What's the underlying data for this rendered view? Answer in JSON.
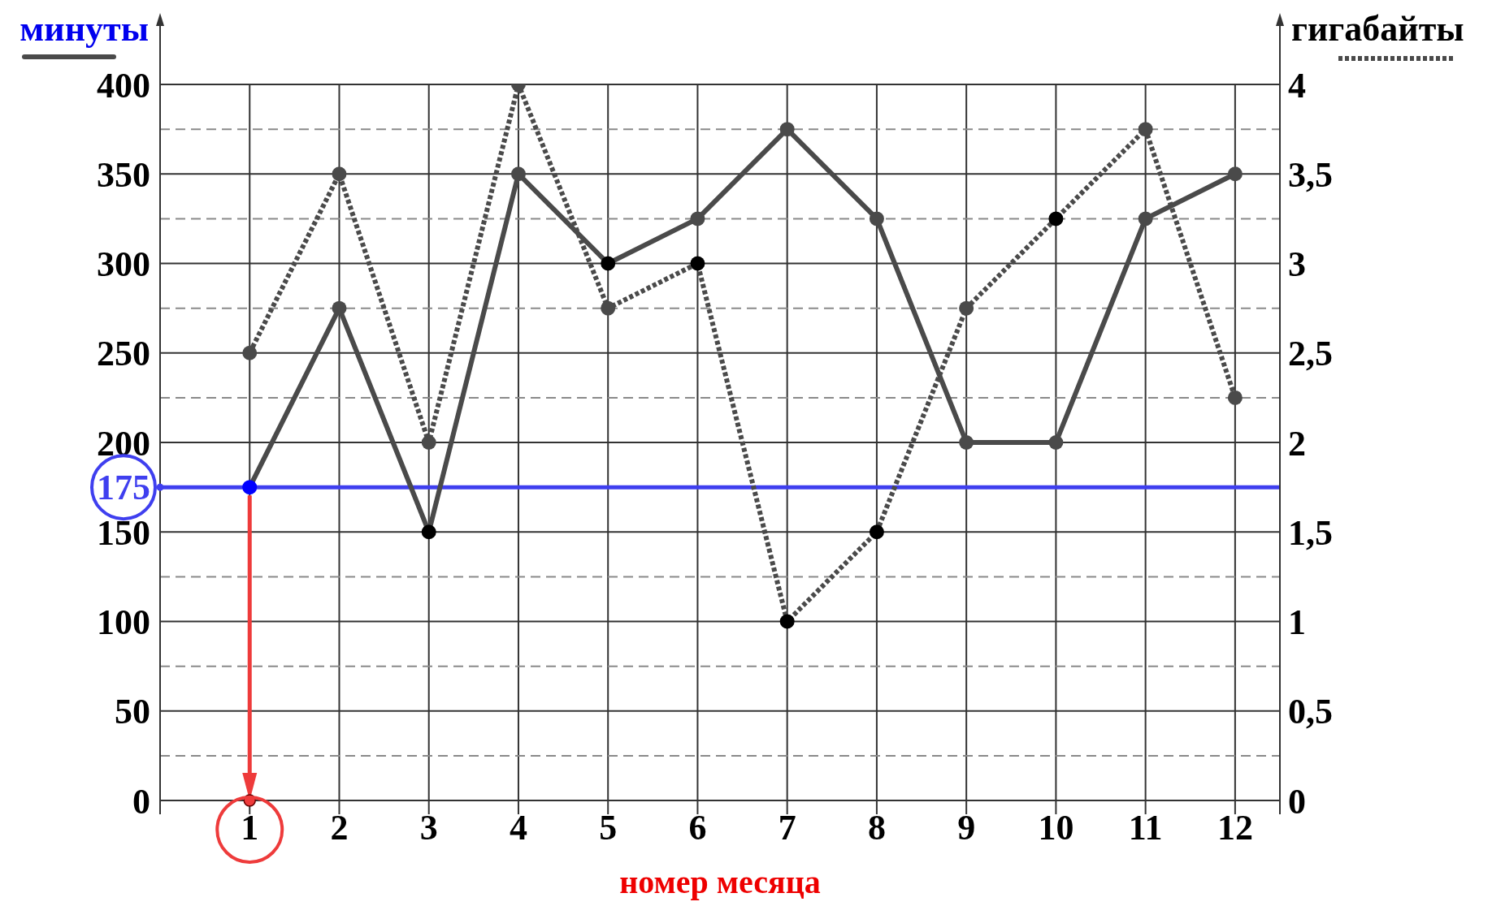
{
  "chart_data": {
    "type": "line",
    "xlabel": "номер месяца",
    "ylabel": "минуты",
    "y2label": "гигабайты",
    "x": [
      1,
      2,
      3,
      4,
      5,
      6,
      7,
      8,
      9,
      10,
      11,
      12
    ],
    "xlim": [
      0,
      12.5
    ],
    "xticks": [
      1,
      2,
      3,
      4,
      5,
      6,
      7,
      8,
      9,
      10,
      11,
      12
    ],
    "ylim": [
      0,
      400
    ],
    "yticks": [
      0,
      50,
      100,
      150,
      200,
      250,
      300,
      350,
      400
    ],
    "y2lim": [
      0,
      4
    ],
    "y2ticks": [
      0,
      {
        "value": 0.25,
        "label": null
      },
      {
        "value": 0.5,
        "label": "0,5"
      },
      {
        "value": 0.75,
        "label": null
      },
      1,
      {
        "value": 1.25,
        "label": null
      },
      {
        "value": 1.5,
        "label": "1,5"
      },
      {
        "value": 1.75,
        "label": null
      },
      2,
      {
        "value": 2.25,
        "label": null
      },
      {
        "value": 2.5,
        "label": "2,5"
      },
      {
        "value": 2.75,
        "label": null
      },
      3,
      {
        "value": 3.25,
        "label": null
      },
      {
        "value": 3.5,
        "label": "3,5"
      },
      {
        "value": 3.75,
        "label": null
      },
      4
    ],
    "grid": true,
    "marker": "circle",
    "series": [
      {
        "color": "#4a4a4a",
        "line_style": "solid",
        "values": [
          175,
          275,
          150,
          350,
          300,
          325,
          375,
          325,
          200,
          200,
          325,
          350
        ],
        "colors": [
          "#0000ff",
          "#4a4a4a",
          "#000000",
          "#4a4a4a",
          "#000000",
          "#4a4a4a",
          "#4a4a4a",
          "#4a4a4a",
          "#4a4a4a",
          "#4a4a4a",
          "#4a4a4a",
          "#4a4a4a"
        ]
      },
      {
        "color": "#4a4a4a",
        "line_style": "dotted",
        "axis": "y2",
        "values": [
          2.5,
          3.5,
          2,
          4,
          2.75,
          3,
          1,
          1.5,
          2.75,
          3.25,
          3.75,
          2.25
        ],
        "colors": [
          "#4a4a4a",
          "#4a4a4a",
          "#4a4a4a",
          "#4a4a4a",
          "#4a4a4a",
          "#000000",
          "#000000",
          "#000000",
          "#4a4a4a",
          "#000000",
          "#4a4a4a",
          "#4a4a4a"
        ]
      }
    ],
    "ref_lines": [
      {
        "axis": "y",
        "value": 175,
        "label": "175",
        "color": "#3f3fef"
      },
      {
        "axis": "x",
        "value": 1,
        "color": "#ee3b3b"
      }
    ]
  }
}
